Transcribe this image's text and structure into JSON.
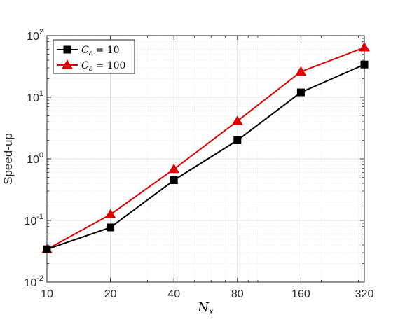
{
  "chart_data": {
    "type": "line",
    "x_scale": "log",
    "y_scale": "log",
    "x": [
      10,
      20,
      40,
      80,
      160,
      320
    ],
    "x_tick_labels": [
      "10",
      "20",
      "40",
      "80",
      "160",
      "320"
    ],
    "xlim": [
      10,
      320
    ],
    "ylim": [
      0.01,
      100
    ],
    "y_ticks": [
      {
        "value": 0.01,
        "base": "10",
        "exp": "-2"
      },
      {
        "value": 0.1,
        "base": "10",
        "exp": "-1"
      },
      {
        "value": 1,
        "base": "10",
        "exp": "0"
      },
      {
        "value": 10,
        "base": "10",
        "exp": "1"
      },
      {
        "value": 100,
        "base": "10",
        "exp": "2"
      }
    ],
    "xlabel": {
      "main": "N",
      "sub": "x"
    },
    "ylabel": "Speed-up",
    "grid": true,
    "legend_position": "top-left",
    "series": [
      {
        "name_symbol": "C",
        "name_sub": "ε",
        "name_value": " = 10",
        "color": "#000000",
        "marker": "square",
        "values": [
          0.034,
          0.077,
          0.45,
          2.0,
          12.0,
          34.0
        ]
      },
      {
        "name_symbol": "C",
        "name_sub": "ε",
        "name_value": " = 100",
        "color": "#e00000",
        "marker": "triangle",
        "values": [
          0.034,
          0.125,
          0.68,
          4.1,
          26.0,
          64.0
        ]
      }
    ]
  }
}
